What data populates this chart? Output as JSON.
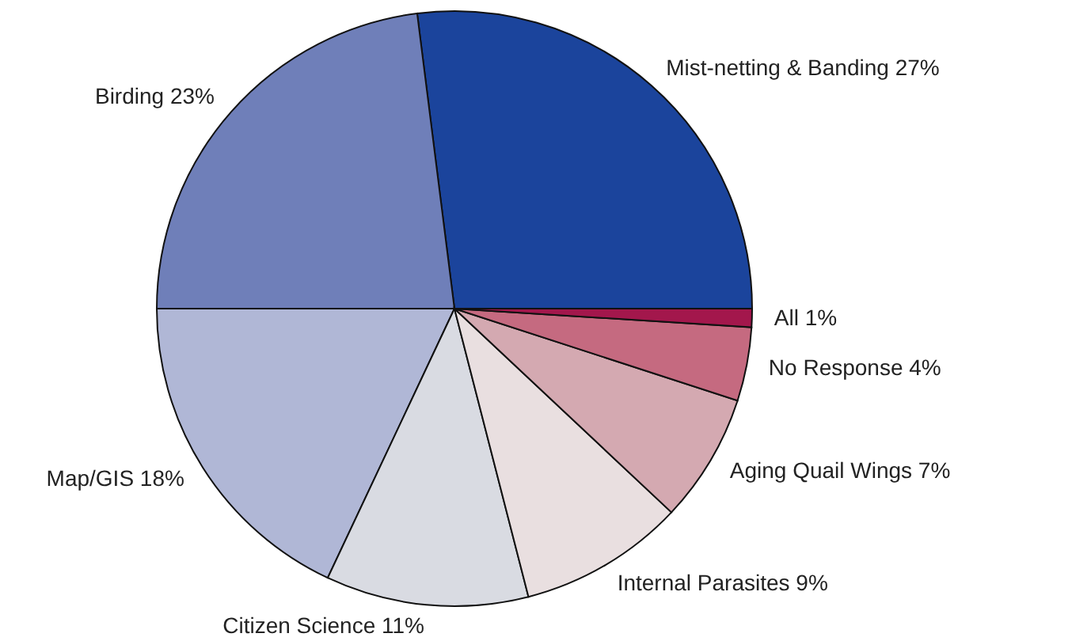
{
  "chart_data": {
    "type": "pie",
    "categories": [
      "Mist-netting & Banding",
      "Birding",
      "Map/GIS",
      "Citizen Science",
      "Internal Parasites",
      "Aging Quail Wings",
      "No Response",
      "All"
    ],
    "values": [
      27,
      23,
      18,
      11,
      9,
      7,
      4,
      1
    ],
    "value_labels": [
      "27%",
      "23%",
      "18%",
      "11%",
      "9%",
      "7%",
      "4%",
      "1%"
    ],
    "colors": [
      "#1b449c",
      "#6f7fb9",
      "#b0b7d6",
      "#d9dbe2",
      "#e9dfe0",
      "#d4a9b1",
      "#c56a80",
      "#a3174c"
    ]
  }
}
